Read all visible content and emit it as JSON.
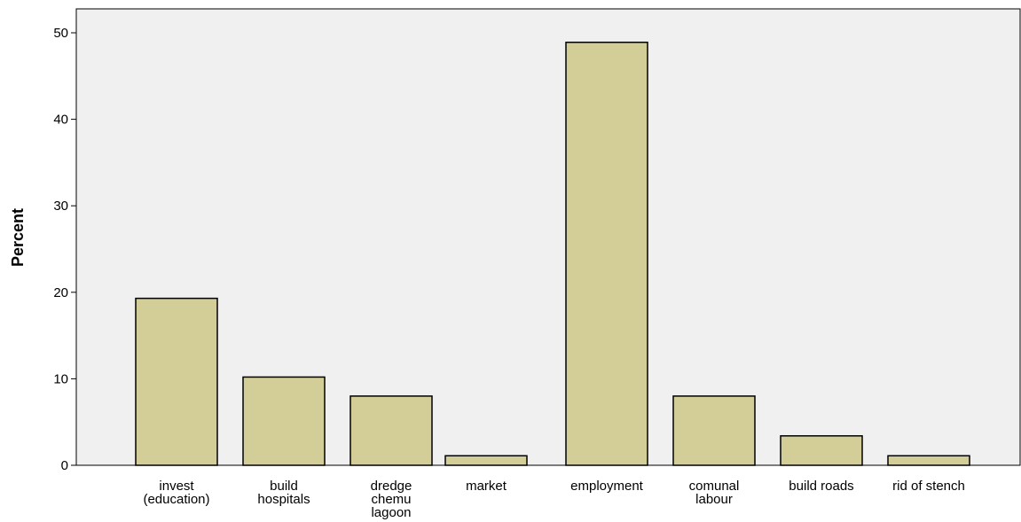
{
  "chart_data": {
    "type": "bar",
    "categories": [
      [
        "invest",
        "(education)"
      ],
      [
        "build",
        "hospitals"
      ],
      [
        "dredge",
        "chemu",
        "lagoon"
      ],
      [
        "market"
      ],
      [
        "employment"
      ],
      [
        "comunal",
        "labour"
      ],
      [
        "build roads"
      ],
      [
        "rid of stench"
      ]
    ],
    "values": [
      19.3,
      10.2,
      8.0,
      1.1,
      48.9,
      8.0,
      3.4,
      1.1
    ],
    "title": "",
    "xlabel": "",
    "ylabel": "Percent",
    "ylim": [
      0,
      50
    ],
    "yticks": [
      0,
      10,
      20,
      30,
      40,
      50
    ],
    "grid": false,
    "colors": {
      "bar_fill": "#d3ce97",
      "bar_stroke": "#000000",
      "plot_background": "#f0f0f0",
      "axis": "#000000"
    }
  }
}
